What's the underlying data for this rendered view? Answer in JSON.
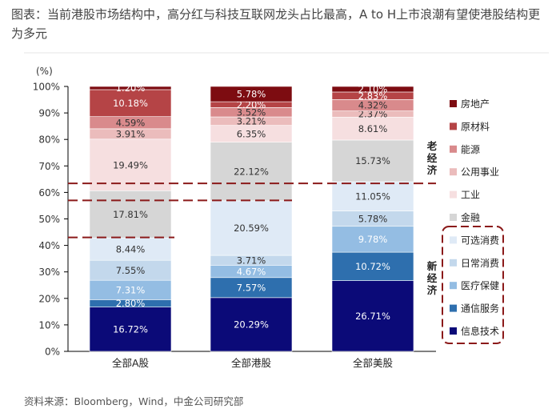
{
  "caption": "图表：当前港股市场结构中，高分红与科技互联网龙头占比最高，A to H上市浪潮有望使港股结构更为多元",
  "source": "资料来源：Bloomberg，Wind，中金公司研究部",
  "chart_data": {
    "type": "bar",
    "stacked": true,
    "ylabel": "(%)",
    "ylim": [
      0,
      100
    ],
    "yticks": [
      "0%",
      "10%",
      "20%",
      "30%",
      "40%",
      "50%",
      "60%",
      "70%",
      "80%",
      "90%",
      "100%"
    ],
    "categories": [
      "全部A股",
      "全部港股",
      "全部美股"
    ],
    "series": [
      {
        "name": "信息技术",
        "color": "#0b0a78",
        "values": [
          16.72,
          20.29,
          26.71
        ],
        "labels": [
          "16.72%",
          "20.29%",
          "26.71%"
        ]
      },
      {
        "name": "通信服务",
        "color": "#2e6fae",
        "values": [
          2.8,
          7.57,
          10.72
        ],
        "labels": [
          "2.80%",
          "7.57%",
          "10.72%"
        ]
      },
      {
        "name": "医疗保健",
        "color": "#94bde3",
        "values": [
          7.31,
          4.67,
          9.78
        ],
        "labels": [
          "7.31%",
          "4.67%",
          "9.78%"
        ]
      },
      {
        "name": "日常消费",
        "color": "#c3d8ec",
        "values": [
          7.55,
          3.71,
          5.78
        ],
        "labels": [
          "7.55%",
          "3.71%",
          "5.78%"
        ]
      },
      {
        "name": "可选消费",
        "color": "#dfeaf6",
        "values": [
          8.44,
          20.59,
          11.05
        ],
        "labels": [
          "8.44%",
          "20.59%",
          "11.05%"
        ]
      },
      {
        "name": "金融",
        "color": "#d6d6d6",
        "values": [
          17.81,
          22.12,
          15.73
        ],
        "labels": [
          "17.81%",
          "22.12%",
          "15.73%"
        ]
      },
      {
        "name": "工业",
        "color": "#f6dfe0",
        "values": [
          19.49,
          6.35,
          8.61
        ],
        "labels": [
          "19.49%",
          "6.35%",
          "8.61%"
        ]
      },
      {
        "name": "公用事业",
        "color": "#ebbcbc",
        "values": [
          3.91,
          3.21,
          2.37
        ],
        "labels": [
          "3.91%",
          "3.21%",
          "2.37%"
        ]
      },
      {
        "name": "能源",
        "color": "#d98a8c",
        "values": [
          4.59,
          3.52,
          4.32
        ],
        "labels": [
          "4.59%",
          "3.52%",
          "4.32%"
        ]
      },
      {
        "name": "原材料",
        "color": "#b54446",
        "values": [
          10.18,
          2.2,
          2.83
        ],
        "labels": [
          "10.18%",
          "2.20%",
          "2.83%"
        ]
      },
      {
        "name": "房地产",
        "color": "#7d0c11",
        "values": [
          1.2,
          5.78,
          2.1
        ],
        "labels": [
          "1.20%",
          "5.78%",
          "2.10%"
        ]
      }
    ],
    "groups": [
      {
        "label": "老经济",
        "members": [
          "房地产",
          "原材料",
          "能源",
          "公用事业",
          "工业",
          "金融"
        ]
      },
      {
        "label": "新经济",
        "members": [
          "可选消费",
          "日常消费",
          "医疗保健",
          "通信服务",
          "信息技术"
        ]
      }
    ],
    "legend_order": [
      "房地产",
      "原材料",
      "能源",
      "公用事业",
      "工业",
      "金融",
      "可选消费",
      "日常消费",
      "医疗保健",
      "通信服务",
      "信息技术"
    ],
    "legend_position": "right",
    "dashed_lines": [
      63.4,
      57.0,
      43.0
    ],
    "grid": false
  }
}
